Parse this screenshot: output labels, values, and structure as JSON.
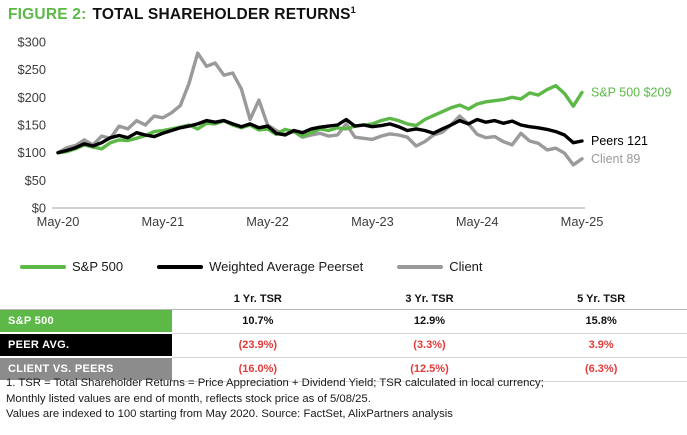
{
  "header": {
    "figure_label": "FIGURE 2:",
    "title": "TOTAL SHAREHOLDER RETURNS",
    "footnote_marker": "1"
  },
  "colors": {
    "green": "#5CB947",
    "black": "#000000",
    "gray_line": "#9A9A9A",
    "table_gray": "#8C8C8C",
    "negative_red": "#E23B3B",
    "axis_text": "#3D3D3D",
    "baseline": "#C4C4C4"
  },
  "chart_data": {
    "type": "line",
    "title": "Total Shareholder Returns, indexed to 100 starting May 2020",
    "frequency": "monthly",
    "start_month": "May-2020",
    "x_tick_labels": [
      "May-20",
      "May-21",
      "May-22",
      "May-23",
      "May-24",
      "May-25"
    ],
    "x_tick_months": [
      0,
      12,
      24,
      36,
      48,
      60
    ],
    "y_ticks": [
      300,
      250,
      200,
      150,
      100,
      50,
      0
    ],
    "y_tick_prefix": "$",
    "ylim": [
      0,
      300
    ],
    "grid": "baseline-only",
    "legend_position": "below",
    "series": [
      {
        "name": "Client",
        "color": "#9A9A9A",
        "end_label": "Client 89",
        "end_value": 89,
        "values": [
          100,
          109,
          113,
          123,
          114,
          130,
          126,
          148,
          143,
          158,
          150,
          166,
          163,
          172,
          185,
          225,
          280,
          256,
          262,
          240,
          244,
          215,
          160,
          195,
          150,
          140,
          133,
          138,
          128,
          132,
          135,
          130,
          132,
          152,
          128,
          126,
          124,
          130,
          134,
          132,
          128,
          112,
          120,
          132,
          137,
          150,
          166,
          152,
          133,
          127,
          129,
          120,
          114,
          135,
          121,
          117,
          105,
          108,
          99,
          78,
          89
        ]
      },
      {
        "name": "S&P 500",
        "color": "#5CB947",
        "end_label": "S&P 500 $209",
        "end_value": 209,
        "values": [
          100,
          102,
          107,
          114,
          110,
          107,
          118,
          123,
          122,
          126,
          131,
          138,
          140,
          143,
          146,
          150,
          143,
          153,
          152,
          158,
          150,
          145,
          150,
          141,
          143,
          133,
          142,
          138,
          130,
          136,
          143,
          140,
          145,
          143,
          148,
          150,
          152,
          158,
          162,
          158,
          152,
          149,
          160,
          167,
          174,
          181,
          186,
          179,
          188,
          192,
          194,
          196,
          200,
          197,
          208,
          204,
          214,
          221,
          207,
          184,
          209
        ]
      },
      {
        "name": "Weighted Average Peerset",
        "color": "#000000",
        "end_label": "Peers 121",
        "end_value": 121,
        "values": [
          100,
          104,
          109,
          116,
          112,
          118,
          127,
          131,
          127,
          136,
          132,
          129,
          135,
          140,
          145,
          148,
          152,
          158,
          155,
          158,
          152,
          147,
          152,
          145,
          148,
          135,
          132,
          140,
          136,
          143,
          146,
          148,
          150,
          160,
          148,
          150,
          147,
          149,
          152,
          147,
          140,
          143,
          140,
          135,
          143,
          150,
          158,
          152,
          160,
          155,
          158,
          153,
          157,
          150,
          147,
          145,
          142,
          138,
          132,
          118,
          121
        ]
      }
    ]
  },
  "legend": {
    "items": [
      {
        "label": "S&P 500",
        "color": "#5CB947"
      },
      {
        "label": "Weighted Average Peerset",
        "color": "#000000"
      },
      {
        "label": "Client",
        "color": "#9A9A9A"
      }
    ]
  },
  "table": {
    "column_headers": [
      "1 Yr. TSR",
      "3 Yr. TSR",
      "5 Yr. TSR"
    ],
    "rows": [
      {
        "label": "S&P 500",
        "label_bg": "#5CB947",
        "value_color": "#111111",
        "values": [
          "10.7%",
          "12.9%",
          "15.8%"
        ]
      },
      {
        "label": "PEER AVG.",
        "label_bg": "#000000",
        "value_color": "#E23B3B",
        "values": [
          "(23.9%)",
          "(3.3%)",
          "3.9%"
        ]
      },
      {
        "label": "CLIENT VS. PEERS",
        "label_bg": "#8C8C8C",
        "value_color": "#E23B3B",
        "values": [
          "(16.0%)",
          "(12.5%)",
          "(6.3%)"
        ]
      }
    ]
  },
  "footnotes": {
    "line1": "1. TSR = Total Shareholder Returns = Price Appreciation + Dividend Yield; TSR calculated in local currency;",
    "line2": "Monthly listed values are end of month, reflects stock price as of 5/08/25.",
    "line3": "Values are indexed to 100 starting from May 2020. Source: FactSet, AlixPartners analysis"
  }
}
